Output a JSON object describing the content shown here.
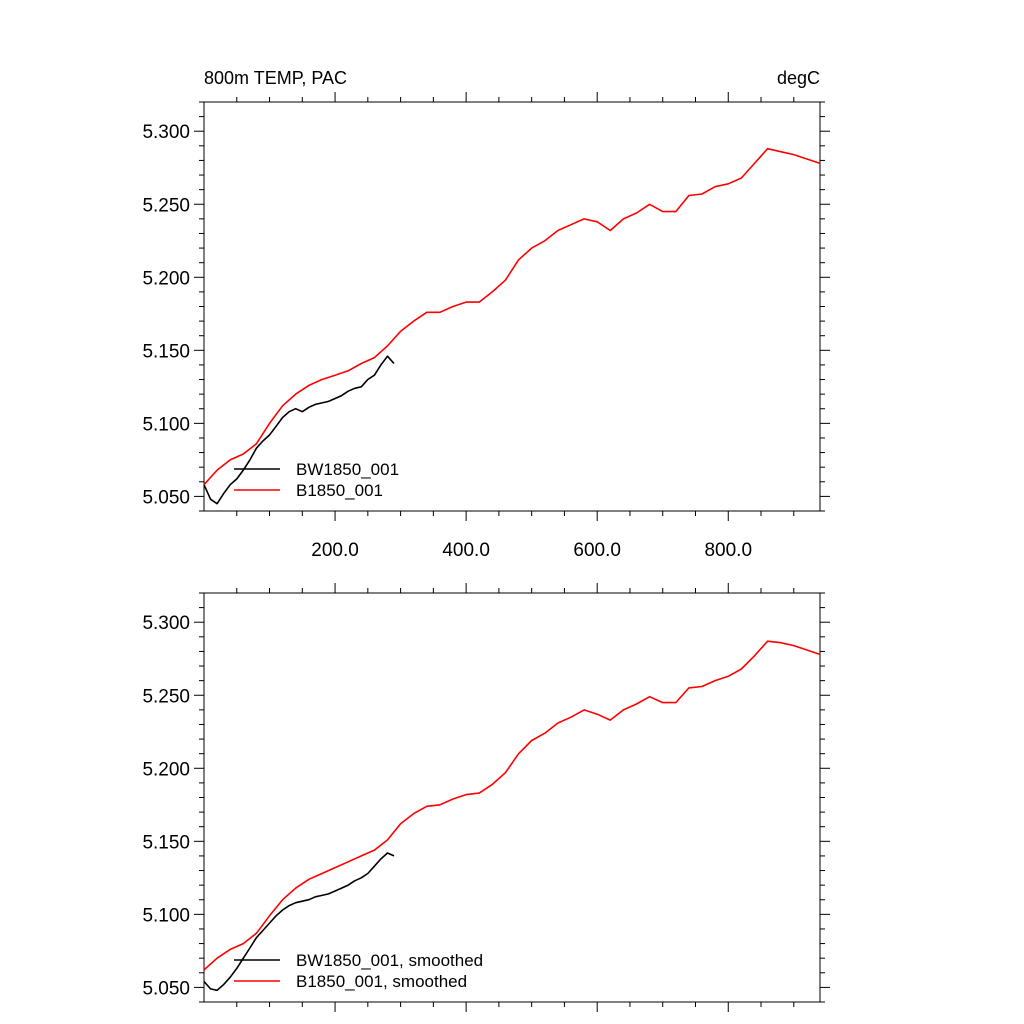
{
  "colors": {
    "series_a": "#000000",
    "series_b": "#ff0000",
    "axis": "#000000"
  },
  "chart_data": [
    {
      "type": "line",
      "title": "800m TEMP, PAC",
      "units": "degC",
      "xlim": [
        0,
        940
      ],
      "ylim": [
        5.04,
        5.32
      ],
      "yticks": [
        5.05,
        5.1,
        5.15,
        5.2,
        5.25,
        5.3
      ],
      "ytick_labels": [
        "5.050",
        "5.100",
        "5.150",
        "5.200",
        "5.250",
        "5.300"
      ],
      "xticks": [
        200,
        400,
        600,
        800
      ],
      "xtick_labels": [
        "200.0",
        "400.0",
        "600.0",
        "800.0"
      ],
      "grid": false,
      "legend_position": "bottom-left",
      "series": [
        {
          "name": "BW1850_001",
          "color": "#000000",
          "x": [
            0,
            10,
            20,
            30,
            40,
            50,
            60,
            70,
            80,
            90,
            100,
            110,
            120,
            130,
            140,
            150,
            160,
            170,
            180,
            190,
            200,
            210,
            220,
            230,
            240,
            250,
            260,
            270,
            280,
            290
          ],
          "y": [
            5.058,
            5.048,
            5.045,
            5.052,
            5.058,
            5.062,
            5.068,
            5.075,
            5.083,
            5.088,
            5.092,
            5.098,
            5.104,
            5.108,
            5.11,
            5.108,
            5.111,
            5.113,
            5.114,
            5.115,
            5.117,
            5.119,
            5.122,
            5.124,
            5.125,
            5.13,
            5.133,
            5.14,
            5.146,
            5.141
          ]
        },
        {
          "name": "B1850_001",
          "color": "#ff0000",
          "x": [
            0,
            20,
            40,
            60,
            80,
            100,
            120,
            140,
            160,
            180,
            200,
            220,
            240,
            260,
            280,
            300,
            320,
            340,
            360,
            380,
            400,
            420,
            440,
            460,
            480,
            500,
            520,
            540,
            560,
            580,
            600,
            620,
            640,
            660,
            680,
            700,
            720,
            740,
            760,
            780,
            800,
            820,
            840,
            860,
            880,
            900,
            920,
            940
          ],
          "y": [
            5.058,
            5.068,
            5.075,
            5.079,
            5.086,
            5.1,
            5.112,
            5.12,
            5.126,
            5.13,
            5.133,
            5.136,
            5.141,
            5.145,
            5.153,
            5.163,
            5.17,
            5.176,
            5.176,
            5.18,
            5.183,
            5.183,
            5.19,
            5.198,
            5.212,
            5.22,
            5.225,
            5.232,
            5.236,
            5.24,
            5.238,
            5.232,
            5.24,
            5.244,
            5.25,
            5.245,
            5.245,
            5.256,
            5.257,
            5.262,
            5.264,
            5.268,
            5.278,
            5.288,
            5.286,
            5.284,
            5.281,
            5.278
          ]
        }
      ]
    },
    {
      "type": "line",
      "xlim": [
        0,
        940
      ],
      "ylim": [
        5.04,
        5.32
      ],
      "yticks": [
        5.05,
        5.1,
        5.15,
        5.2,
        5.25,
        5.3
      ],
      "ytick_labels": [
        "5.050",
        "5.100",
        "5.150",
        "5.200",
        "5.250",
        "5.300"
      ],
      "xticks": [
        200,
        400,
        600,
        800
      ],
      "grid": false,
      "legend_position": "bottom-left",
      "series": [
        {
          "name": "BW1850_001, smoothed",
          "color": "#000000",
          "x": [
            0,
            10,
            20,
            30,
            40,
            50,
            60,
            70,
            80,
            90,
            100,
            110,
            120,
            130,
            140,
            150,
            160,
            170,
            180,
            190,
            200,
            210,
            220,
            230,
            240,
            250,
            260,
            270,
            280,
            290
          ],
          "y": [
            5.054,
            5.049,
            5.048,
            5.052,
            5.057,
            5.063,
            5.07,
            5.077,
            5.084,
            5.089,
            5.094,
            5.099,
            5.103,
            5.106,
            5.108,
            5.109,
            5.11,
            5.112,
            5.113,
            5.114,
            5.116,
            5.118,
            5.12,
            5.123,
            5.125,
            5.128,
            5.133,
            5.138,
            5.142,
            5.14
          ]
        },
        {
          "name": "B1850_001, smoothed",
          "color": "#ff0000",
          "x": [
            0,
            20,
            40,
            60,
            80,
            100,
            120,
            140,
            160,
            180,
            200,
            220,
            240,
            260,
            280,
            300,
            320,
            340,
            360,
            380,
            400,
            420,
            440,
            460,
            480,
            500,
            520,
            540,
            560,
            580,
            600,
            620,
            640,
            660,
            680,
            700,
            720,
            740,
            760,
            780,
            800,
            820,
            840,
            860,
            880,
            900,
            920,
            940
          ],
          "y": [
            5.062,
            5.07,
            5.076,
            5.08,
            5.087,
            5.099,
            5.11,
            5.118,
            5.124,
            5.128,
            5.132,
            5.136,
            5.14,
            5.144,
            5.151,
            5.162,
            5.169,
            5.174,
            5.175,
            5.179,
            5.182,
            5.183,
            5.189,
            5.197,
            5.21,
            5.219,
            5.224,
            5.231,
            5.235,
            5.24,
            5.237,
            5.233,
            5.24,
            5.244,
            5.249,
            5.245,
            5.245,
            5.255,
            5.256,
            5.26,
            5.263,
            5.268,
            5.277,
            5.287,
            5.286,
            5.284,
            5.281,
            5.278
          ]
        }
      ]
    }
  ]
}
